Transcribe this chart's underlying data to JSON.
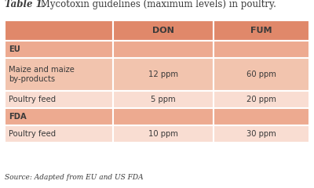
{
  "title_italic": "Table 1.",
  "title_normal": " Mycotoxin guidelines (maximum levels) in poultry.",
  "col_headers": [
    "DON",
    "FUM"
  ],
  "rows": [
    {
      "label": "EU",
      "don": "",
      "fum": "",
      "type": "section"
    },
    {
      "label": "Maize and maize\nby-products",
      "don": "12 ppm",
      "fum": "60 ppm",
      "type": "data_dark"
    },
    {
      "label": "Poultry feed",
      "don": "5 ppm",
      "fum": "20 ppm",
      "type": "data_light"
    },
    {
      "label": "FDA",
      "don": "",
      "fum": "",
      "type": "section"
    },
    {
      "label": "Poultry feed",
      "don": "10 ppm",
      "fum": "30 ppm",
      "type": "data_light"
    }
  ],
  "source": "Source: Adapted from EU and US FDA",
  "color_header": "#E0886A",
  "color_section": "#EDAA90",
  "color_data_dark": "#F2C4AE",
  "color_data_light": "#F9DDD2",
  "bg_color": "#FFFFFF",
  "text_color": "#3A3A3A",
  "border_color": "#FFFFFF"
}
